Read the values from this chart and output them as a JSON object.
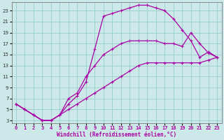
{
  "xlabel": "Windchill (Refroidissement éolien,°C)",
  "bg_color": "#cce8e8",
  "grid_color": "#99cccc",
  "line_color": "#aa00aa",
  "xlim": [
    -0.5,
    23.5
  ],
  "ylim": [
    2.5,
    24.5
  ],
  "xticks": [
    0,
    1,
    2,
    3,
    4,
    5,
    6,
    7,
    8,
    9,
    10,
    11,
    12,
    13,
    14,
    15,
    16,
    17,
    18,
    19,
    20,
    21,
    22,
    23
  ],
  "yticks": [
    3,
    5,
    7,
    9,
    11,
    13,
    15,
    17,
    19,
    21,
    23
  ],
  "line1_x": [
    0,
    1,
    2,
    3,
    4,
    5,
    6,
    7,
    8,
    9,
    10,
    11,
    12,
    13,
    14,
    15,
    16,
    17,
    18,
    19,
    20,
    21,
    22,
    23
  ],
  "line1_y": [
    6,
    5,
    4,
    3,
    3,
    4,
    6,
    7.5,
    10,
    16,
    22,
    22.5,
    23,
    23.5,
    24,
    24,
    23.5,
    23,
    21.5,
    19.5,
    17.5,
    14.5,
    15.5,
    14.5
  ],
  "line2_x": [
    0,
    1,
    2,
    3,
    4,
    5,
    6,
    7,
    8,
    9,
    10,
    11,
    12,
    13,
    14,
    15,
    16,
    17,
    18,
    19,
    20,
    21,
    22,
    23
  ],
  "line2_y": [
    6,
    5,
    4,
    3,
    3,
    4,
    7,
    8,
    11,
    13,
    15,
    16,
    17,
    17.5,
    17.5,
    17.5,
    17.5,
    17,
    17,
    16.5,
    19,
    17,
    15.3,
    14.5
  ],
  "line3_x": [
    0,
    1,
    2,
    3,
    4,
    5,
    6,
    7,
    8,
    9,
    10,
    11,
    12,
    13,
    14,
    15,
    16,
    17,
    18,
    19,
    20,
    21,
    22,
    23
  ],
  "line3_y": [
    6,
    5,
    4,
    3,
    3,
    4,
    5,
    6,
    7,
    8,
    9,
    10,
    11,
    12,
    13,
    13.5,
    13.5,
    13.5,
    13.5,
    13.5,
    13.5,
    13.5,
    14,
    14.5
  ],
  "xlabel_color": "#aa00aa",
  "ylabel_color": "#333333",
  "tick_fontsize": 5,
  "xlabel_fontsize": 5.5,
  "lw": 0.9,
  "ms": 2.5,
  "mew": 0.8
}
